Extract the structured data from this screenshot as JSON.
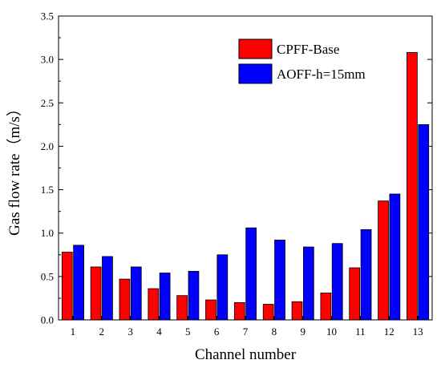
{
  "chart_data": {
    "type": "bar",
    "xlabel": "Channel number",
    "ylabel": "Gas flow rate（m/s）",
    "ylim": [
      0,
      3.5
    ],
    "yticks": [
      "0.0",
      "0.5",
      "1.0",
      "1.5",
      "2.0",
      "2.5",
      "3.0",
      "3.5"
    ],
    "categories": [
      "1",
      "2",
      "3",
      "4",
      "5",
      "6",
      "7",
      "8",
      "9",
      "10",
      "11",
      "12",
      "13"
    ],
    "legend_position": "top-right",
    "grid": false,
    "series": [
      {
        "name": "CPFF-Base",
        "color": "#ff0000",
        "values": [
          0.78,
          0.61,
          0.47,
          0.36,
          0.28,
          0.23,
          0.2,
          0.18,
          0.21,
          0.31,
          0.6,
          1.37,
          3.08
        ]
      },
      {
        "name": "AOFF-h=15mm",
        "color": "#0000ff",
        "values": [
          0.86,
          0.73,
          0.61,
          0.54,
          0.56,
          0.75,
          1.06,
          0.92,
          0.84,
          0.88,
          1.04,
          1.45,
          2.25
        ]
      }
    ]
  }
}
